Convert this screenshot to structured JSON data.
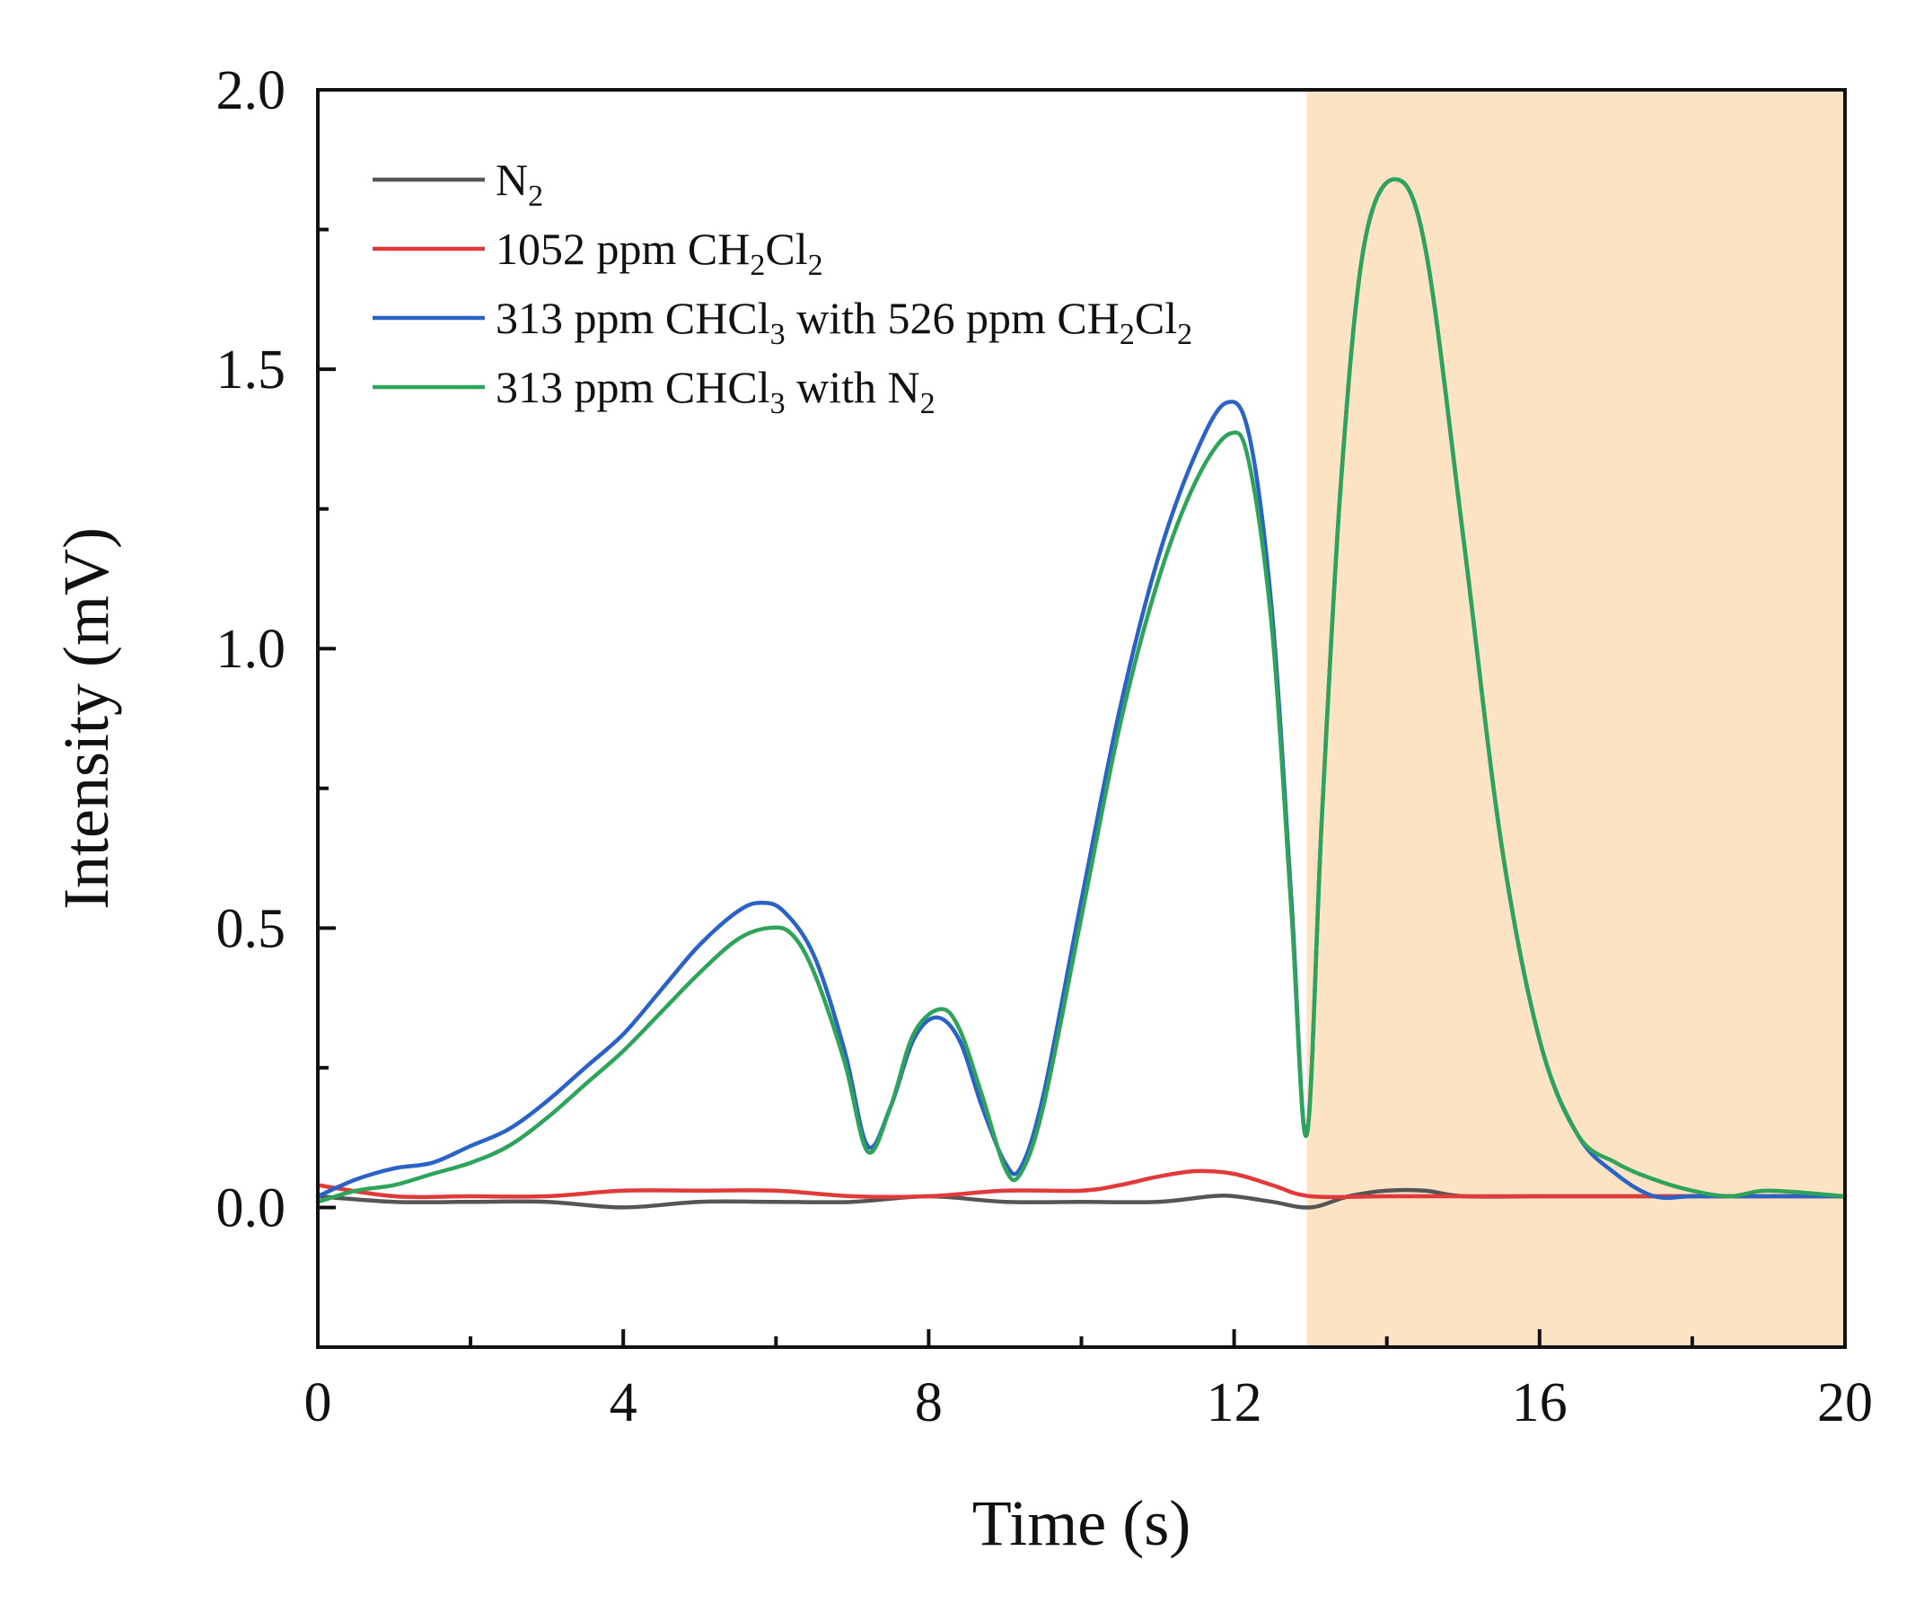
{
  "chart_data": {
    "type": "line",
    "title": "",
    "xlabel": "Time (s)",
    "ylabel": "Intensity (mV)",
    "xlim": [
      0,
      20
    ],
    "ylim": [
      -0.25,
      2.0
    ],
    "x_ticks": [
      "0",
      "4",
      "8",
      "12",
      "16",
      "20"
    ],
    "x_tick_values": [
      0,
      4,
      8,
      12,
      16,
      20
    ],
    "x_minor_ticks": [
      2,
      6,
      10,
      14,
      18
    ],
    "y_ticks": [
      "0.0",
      "0.5",
      "1.0",
      "1.5",
      "2.0"
    ],
    "y_tick_values": [
      0,
      0.5,
      1.0,
      1.5,
      2.0
    ],
    "y_minor_ticks": [
      0.25,
      0.75,
      1.25,
      1.75
    ],
    "grid": false,
    "legend_position": "top-left",
    "shaded_region": {
      "x_start": 12.95,
      "x_end": 20,
      "color": "#fbe3c4"
    },
    "series": [
      {
        "name": [
          "N",
          "2"
        ],
        "color": "#555555",
        "x": [
          0,
          1,
          2,
          3,
          4,
          5,
          6,
          7,
          8,
          9,
          10,
          11,
          11.7,
          12,
          12.5,
          13,
          13.5,
          14,
          14.5,
          15,
          16,
          17,
          18,
          19,
          20
        ],
        "y": [
          0.02,
          0.01,
          0.01,
          0.01,
          0.0,
          0.01,
          0.01,
          0.01,
          0.02,
          0.01,
          0.01,
          0.01,
          0.02,
          0.02,
          0.01,
          0.0,
          0.02,
          0.03,
          0.03,
          0.02,
          0.02,
          0.02,
          0.02,
          0.02,
          0.02
        ]
      },
      {
        "name": [
          "1052 ppm CH",
          "2",
          "Cl",
          "2"
        ],
        "color": "#e2393a",
        "x": [
          0,
          1,
          2,
          3,
          4,
          5,
          6,
          7,
          8,
          9,
          10,
          10.5,
          11,
          11.5,
          12,
          12.5,
          13,
          14,
          15,
          16,
          17,
          18,
          19,
          20
        ],
        "y": [
          0.04,
          0.02,
          0.02,
          0.02,
          0.03,
          0.03,
          0.03,
          0.02,
          0.02,
          0.03,
          0.03,
          0.04,
          0.055,
          0.065,
          0.06,
          0.04,
          0.02,
          0.02,
          0.02,
          0.02,
          0.02,
          0.02,
          0.02,
          0.02
        ]
      },
      {
        "name": [
          "313 ppm CHCl",
          "3",
          " with 526 ppm CH",
          "2",
          "Cl",
          "2"
        ],
        "color": "#2a62c8",
        "x": [
          0,
          0.5,
          1,
          1.5,
          2,
          2.5,
          3,
          3.5,
          4,
          4.5,
          5,
          5.5,
          5.8,
          6.1,
          6.5,
          6.9,
          7.2,
          7.5,
          7.8,
          8.1,
          8.4,
          8.7,
          9.0,
          9.2,
          9.5,
          10,
          10.5,
          11,
          11.5,
          11.9,
          12.2,
          12.5,
          12.75,
          12.95,
          13.15,
          13.4,
          13.7,
          14.1,
          14.5,
          15,
          15.5,
          16,
          16.5,
          17,
          17.5,
          18,
          18.5,
          19,
          20
        ],
        "y": [
          0.02,
          0.05,
          0.07,
          0.08,
          0.11,
          0.14,
          0.19,
          0.25,
          0.31,
          0.39,
          0.47,
          0.53,
          0.545,
          0.53,
          0.45,
          0.28,
          0.11,
          0.18,
          0.3,
          0.34,
          0.3,
          0.18,
          0.08,
          0.07,
          0.2,
          0.55,
          0.89,
          1.16,
          1.35,
          1.44,
          1.38,
          1.06,
          0.55,
          0.13,
          0.7,
          1.3,
          1.72,
          1.84,
          1.72,
          1.2,
          0.65,
          0.3,
          0.13,
          0.06,
          0.02,
          0.02,
          0.02,
          0.02,
          0.02
        ]
      },
      {
        "name": [
          "313 ppm CHCl",
          "3",
          " with N",
          "2"
        ],
        "color": "#2ea35a",
        "x": [
          0,
          0.5,
          1,
          1.5,
          2,
          2.5,
          3,
          3.5,
          4,
          4.5,
          5,
          5.5,
          5.9,
          6.2,
          6.5,
          6.9,
          7.2,
          7.5,
          7.8,
          8.15,
          8.4,
          8.7,
          9.0,
          9.2,
          9.5,
          10,
          10.5,
          11,
          11.5,
          11.95,
          12.2,
          12.5,
          12.75,
          12.95,
          13.15,
          13.4,
          13.7,
          14.1,
          14.5,
          15,
          15.5,
          16,
          16.5,
          17,
          17.5,
          18,
          18.5,
          19,
          20
        ],
        "y": [
          0.01,
          0.03,
          0.04,
          0.06,
          0.08,
          0.11,
          0.16,
          0.22,
          0.28,
          0.35,
          0.42,
          0.48,
          0.5,
          0.49,
          0.42,
          0.26,
          0.1,
          0.18,
          0.31,
          0.355,
          0.32,
          0.2,
          0.07,
          0.06,
          0.18,
          0.52,
          0.86,
          1.12,
          1.3,
          1.385,
          1.33,
          1.03,
          0.53,
          0.13,
          0.7,
          1.3,
          1.72,
          1.84,
          1.72,
          1.2,
          0.65,
          0.3,
          0.13,
          0.08,
          0.05,
          0.03,
          0.02,
          0.03,
          0.02
        ]
      }
    ]
  }
}
